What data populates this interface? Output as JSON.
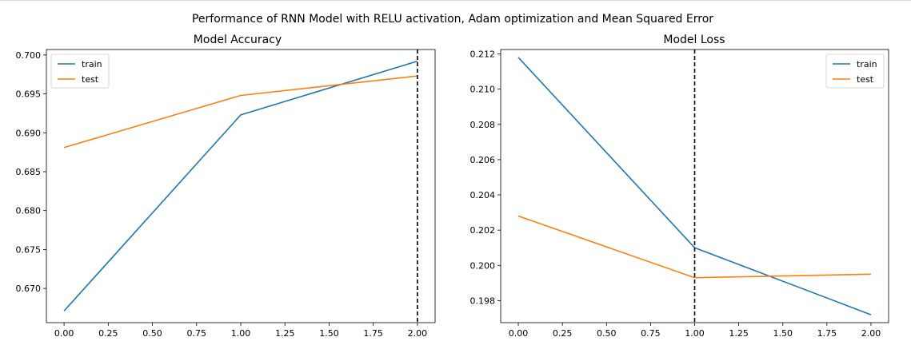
{
  "figure": {
    "suptitle": "Performance of RNN Model with RELU activation, Adam optimization and Mean Squared Error"
  },
  "colors": {
    "train": "#1f77b4",
    "test": "#ff7f0e",
    "vline": "#000000"
  },
  "chart_data": [
    {
      "type": "line",
      "title": "Model Accuracy",
      "xlabel": "",
      "ylabel": "",
      "x": [
        0,
        1,
        2
      ],
      "series": [
        {
          "name": "train",
          "values": [
            0.6671,
            0.6923,
            0.6992
          ]
        },
        {
          "name": "test",
          "values": [
            0.6881,
            0.6948,
            0.6973
          ]
        }
      ],
      "xlim": [
        -0.1,
        2.1
      ],
      "ylim": [
        0.6656,
        0.7007
      ],
      "xticks": [
        0,
        0.25,
        0.5,
        0.75,
        1,
        1.25,
        1.5,
        1.75,
        2
      ],
      "xtick_labels": [
        "0.00",
        "0.25",
        "0.50",
        "0.75",
        "1.00",
        "1.25",
        "1.50",
        "1.75",
        "2.00"
      ],
      "yticks": [
        0.67,
        0.675,
        0.68,
        0.685,
        0.69,
        0.695,
        0.7
      ],
      "ytick_labels": [
        "0.670",
        "0.675",
        "0.680",
        "0.685",
        "0.690",
        "0.695",
        "0.700"
      ],
      "vline_x": 2,
      "grid": false,
      "legend": "upper-left"
    },
    {
      "type": "line",
      "title": "Model Loss",
      "xlabel": "",
      "ylabel": "",
      "x": [
        0,
        1,
        2
      ],
      "series": [
        {
          "name": "train",
          "values": [
            0.2118,
            0.201,
            0.1972
          ]
        },
        {
          "name": "test",
          "values": [
            0.2028,
            0.1993,
            0.1995
          ]
        }
      ],
      "xlim": [
        -0.1,
        2.1
      ],
      "ylim": [
        0.19675,
        0.21225
      ],
      "xticks": [
        0,
        0.25,
        0.5,
        0.75,
        1,
        1.25,
        1.5,
        1.75,
        2
      ],
      "xtick_labels": [
        "0.00",
        "0.25",
        "0.50",
        "0.75",
        "1.00",
        "1.25",
        "1.50",
        "1.75",
        "2.00"
      ],
      "yticks": [
        0.198,
        0.2,
        0.202,
        0.204,
        0.206,
        0.208,
        0.21,
        0.212
      ],
      "ytick_labels": [
        "0.198",
        "0.200",
        "0.202",
        "0.204",
        "0.206",
        "0.208",
        "0.210",
        "0.212"
      ],
      "vline_x": 1,
      "grid": false,
      "legend": "upper-right"
    }
  ]
}
